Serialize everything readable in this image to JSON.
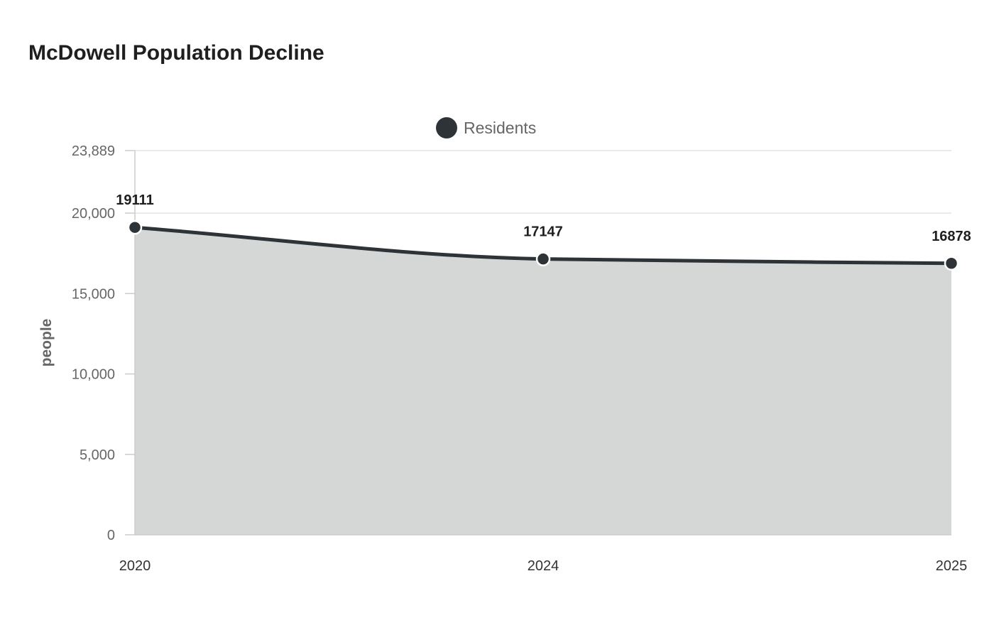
{
  "chart_data": {
    "type": "area",
    "title": "McDowell Population Decline",
    "xlabel": "",
    "ylabel": "people",
    "categories": [
      "2020",
      "2024",
      "2025"
    ],
    "series": [
      {
        "name": "Residents",
        "values": [
          19111,
          17147,
          16878
        ],
        "color": "#2d3336",
        "fill": "#d5d7d6"
      }
    ],
    "ylim": [
      0,
      23889
    ],
    "yticks": [
      0,
      5000,
      10000,
      15000,
      20000,
      23889
    ],
    "ytick_labels": [
      "0",
      "5,000",
      "10,000",
      "15,000",
      "20,000",
      "23,889"
    ],
    "grid": true,
    "legend_position": "top-center",
    "data_labels": true
  }
}
